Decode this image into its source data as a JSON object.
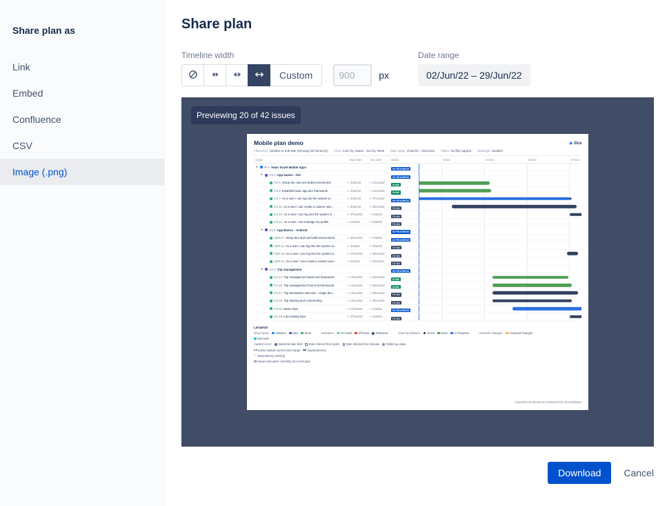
{
  "colors": {
    "accent": "#0052cc",
    "preview_bg": "#414d66",
    "badge_bg": "#2e3b5b",
    "status": {
      "IN PROGRESS": "#0052cc",
      "TO DO": "#344563",
      "DONE": "#00875a"
    },
    "bar": {
      "done": "#4f9e57",
      "inprogress": "#2a6fe0",
      "todo": "#32415f"
    },
    "issue_icon": {
      "initiative": "#2684ff",
      "epic": "#6554c0",
      "story": "#36b37e"
    }
  },
  "sidebar": {
    "title": "Share plan as",
    "items": [
      {
        "label": "Link",
        "selected": false
      },
      {
        "label": "Embed",
        "selected": false
      },
      {
        "label": "Confluence",
        "selected": false
      },
      {
        "label": "CSV",
        "selected": false
      },
      {
        "label": "Image (.png)",
        "selected": true
      }
    ]
  },
  "header": {
    "title": "Share plan"
  },
  "controls": {
    "timeline_width": {
      "label": "Timeline width",
      "icon_buttons": [
        {
          "name": "fit-none",
          "selected": false
        },
        {
          "name": "fit-small",
          "selected": false
        },
        {
          "name": "fit-medium",
          "selected": false
        },
        {
          "name": "fit-large",
          "selected": true
        }
      ],
      "custom_label": "Custom",
      "width_placeholder": "900",
      "unit_label": "px"
    },
    "date_range": {
      "label": "Date range",
      "value": "02/Jun/22 – 29/Jun/22"
    }
  },
  "preview": {
    "badge": "Previewing 20 of 42 issues"
  },
  "plan": {
    "title": "Mobile plan demo",
    "brand": "Jira",
    "meta": [
      {
        "label": "Filtered by:",
        "value": "Initiative to Sub-task (Showing full hierarchy)"
      },
      {
        "label": "View:",
        "value": "Color by: Status · Sort by: Rank"
      },
      {
        "label": "Date range:",
        "value": "2/Jun/22 – 29/Jun/22"
      },
      {
        "label": "Filters:",
        "value": "No filter applied"
      },
      {
        "label": "Warnings:",
        "value": "Enabled"
      }
    ],
    "table_headers": {
      "scope": "scope",
      "start": "start date",
      "due": "due date",
      "status": "status"
    },
    "timeline": {
      "gridlines": [
        {
          "label": "6/Jun",
          "pct": 14.8
        },
        {
          "label": "13/Jun",
          "pct": 40.7
        },
        {
          "label": "20/Jun",
          "pct": 66.7
        },
        {
          "label": "27/Jun",
          "pct": 92.6
        }
      ],
      "today_pct": 0.8
    },
    "rows": [
      {
        "key": "IP-4",
        "summary": "Team Travel Mobile Apps",
        "level": 0,
        "type": "initiative",
        "expander": true,
        "start": "",
        "due": "",
        "status": "IN PROGRESS",
        "bar": null
      },
      {
        "key": "CS-4",
        "summary": "App basics - iOS",
        "level": 1,
        "type": "epic",
        "expander": true,
        "start": "",
        "due": "",
        "status": "IN PROGRESS",
        "bar": null
      },
      {
        "key": "CS-6",
        "summary": "Setup dev and unit build environment",
        "level": 2,
        "type": "story",
        "expander": false,
        "start": "2/Jun/22",
        "due": "14/Jun/22",
        "status": "DONE",
        "bar": {
          "from": 0.8,
          "to": 44,
          "color": "done"
        }
      },
      {
        "key": "CS-8",
        "summary": "Establish basic app dev framework",
        "level": 2,
        "type": "story",
        "expander": false,
        "start": "2/Jun/22",
        "due": "14/Jun/22",
        "status": "DONE",
        "bar": {
          "from": 0.8,
          "to": 45,
          "color": "done"
        }
      },
      {
        "key": "CS-7",
        "summary": "As a user I can log into the system w...",
        "level": 2,
        "type": "story",
        "expander": false,
        "start": "2/Jun/22",
        "due": "27/Jun/22",
        "status": "IN PROGRESS",
        "bar": {
          "from": 0.8,
          "to": 93,
          "color": "inprogress",
          "marker": true
        }
      },
      {
        "key": "CS-11",
        "summary": "As a user I can create a custom user...",
        "level": 2,
        "type": "story",
        "expander": false,
        "start": "8/Jun/22",
        "due": "28/Jun/22",
        "status": "TO DO",
        "bar": {
          "from": 21,
          "to": 97,
          "color": "todo"
        }
      },
      {
        "key": "CS-10",
        "summary": "As a user I can log into the system vi...",
        "level": 2,
        "type": "story",
        "expander": false,
        "start": "27/Jun/22",
        "due": "1/Jul/22",
        "status": "TO DO",
        "bar": {
          "from": 93,
          "to": 100,
          "color": "todo",
          "clip": true
        }
      },
      {
        "key": "CS-12",
        "summary": "As a user I can manage my profile",
        "level": 2,
        "type": "story",
        "expander": false,
        "start": "1/Jul/22",
        "due": "8/Jul/22",
        "status": "TO DO",
        "bar": null
      },
      {
        "key": "CS-5",
        "summary": "App Basics - Android",
        "level": 1,
        "type": "epic",
        "expander": true,
        "start": "",
        "due": "",
        "status": "IN PROGRESS",
        "bar": null
      },
      {
        "key": "ADR-17",
        "summary": "Setup dev and unit build environment",
        "level": 2,
        "type": "story",
        "expander": false,
        "start": "30/Jun/22",
        "due": "7/Jul/22",
        "status": "IN PROGRESS",
        "bar": null
      },
      {
        "key": "ADR-11",
        "summary": "As a user I can log into the system w...",
        "level": 2,
        "type": "story",
        "expander": false,
        "start": "4/Jul/22",
        "due": "8/Jul/22",
        "status": "TO DO",
        "bar": null
      },
      {
        "key": "ADR-15",
        "summary": "As a user I can log into the system vi...",
        "level": 2,
        "type": "story",
        "expander": false,
        "start": "27/Jun/22",
        "due": "29/Jun/22",
        "status": "TO DO",
        "bar": {
          "from": 91,
          "to": 98,
          "color": "todo"
        }
      },
      {
        "key": "ADR-14",
        "summary": "As a user I can create a custom user...",
        "level": 2,
        "type": "story",
        "expander": false,
        "start": "6/Jul/22",
        "due": "12/Jul/22",
        "status": "TO DO",
        "bar": null
      },
      {
        "key": "CS-2",
        "summary": "Trip management",
        "level": 1,
        "type": "epic",
        "expander": true,
        "start": "",
        "due": "",
        "status": "IN PROGRESS",
        "bar": null
      },
      {
        "key": "CS-14",
        "summary": "Trip management back-end framework",
        "level": 2,
        "type": "story",
        "expander": false,
        "start": "14/Jun/22",
        "due": "24/Jun/22",
        "status": "DONE",
        "bar": {
          "from": 46,
          "to": 92,
          "color": "done"
        }
      },
      {
        "key": "CS-15",
        "summary": "Trip management front-end framework",
        "level": 2,
        "type": "story",
        "expander": false,
        "start": "14/Jun/22",
        "due": "25/Jun/22",
        "status": "DONE",
        "bar": {
          "from": 46,
          "to": 94,
          "color": "done"
        }
      },
      {
        "key": "CS-17",
        "summary": "Trip destination selection - single des...",
        "level": 2,
        "type": "story",
        "expander": false,
        "start": "14/Jun/22",
        "due": "28/Jun/22",
        "status": "TO DO",
        "bar": {
          "from": 46,
          "to": 98,
          "color": "todo"
        }
      },
      {
        "key": "CS-20",
        "summary": "Trip sharing and commenting",
        "level": 2,
        "type": "story",
        "expander": false,
        "start": "14/Jun/22",
        "due": "25/Jun/22",
        "status": "TO DO",
        "bar": {
          "from": 46,
          "to": 94,
          "color": "todo"
        }
      },
      {
        "key": "CS-22",
        "summary": "Name trips",
        "level": 2,
        "type": "story",
        "expander": false,
        "start": "17/Jun/22",
        "due": "1/Jul/22",
        "status": "IN PROGRESS",
        "bar": {
          "from": 58,
          "to": 100,
          "color": "inprogress",
          "clip": true
        }
      },
      {
        "key": "CS-18",
        "summary": "List existing trips",
        "level": 2,
        "type": "story",
        "expander": false,
        "start": "27/Jun/22",
        "due": "4/Jul/22",
        "status": "TO DO",
        "bar": {
          "from": 93,
          "to": 100,
          "color": "todo",
          "clip": true
        }
      }
    ],
    "legend": {
      "title": "LEGEND",
      "rows": [
        [
          {
            "label": "Issue types:",
            "items": [
              {
                "shape": "square",
                "color": "#2684ff",
                "text": "Initiative"
              },
              {
                "shape": "square",
                "color": "#6554c0",
                "text": "Epic"
              },
              {
                "shape": "square",
                "color": "#36b37e",
                "text": "Story"
              }
            ]
          },
          {
            "label": "Releases:",
            "items": [
              {
                "shape": "dot",
                "color": "#36b37e",
                "text": "On-track"
              },
              {
                "shape": "dot",
                "color": "#de350b",
                "text": "Off-track"
              },
              {
                "shape": "diamond",
                "color": "#344563",
                "text": "Released"
              }
            ]
          },
          {
            "label": "Color by (Status):",
            "items": [
              {
                "shape": "square",
                "color": "#344563",
                "text": "To Do"
              },
              {
                "shape": "square",
                "color": "#4f9e57",
                "text": "Done"
              },
              {
                "shape": "square",
                "color": "#2a6fe0",
                "text": "In Progress"
              }
            ]
          },
          {
            "label": "Scenario changes:",
            "items": [
              {
                "shape": "outline",
                "color": "#ff991f",
                "text": "Unsaved changes"
              }
            ]
          }
        ],
        [
          {
            "label": "",
            "items": [
              {
                "shape": "square",
                "color": "#00b8d9",
                "text": "Sub-task"
              }
            ]
          }
        ],
        [
          {
            "label": "Applied icons:",
            "items": [
              {
                "shape": "dot",
                "color": "#5e6c84",
                "text": "Start/end date limit"
              },
              {
                "shape": "outline",
                "color": "#5e6c84",
                "text": "Date inferred from sprint"
              },
              {
                "shape": "outline",
                "color": "#5e6c84",
                "text": "Date inferred from release"
              },
              {
                "shape": "dot",
                "color": "#8993a4",
                "text": "Rolled-up value"
              }
            ]
          }
        ],
        [
          {
            "label": "",
            "items": [
              {
                "shape": "halfdots",
                "color": "#5e6c84",
                "text": "Dates outside current view range"
              },
              {
                "shape": "line",
                "color": "#5e6c84",
                "text": "Dependencies"
              }
            ]
          }
        ],
        [
          {
            "label": "",
            "items": [
              {
                "shape": "warn",
                "color": "#ff991f",
                "text": "Dependency warning"
              }
            ]
          }
        ],
        [
          {
            "label": "",
            "items": [
              {
                "shape": "hatch",
                "color": "#8993a4",
                "text": "Issues and epics currently not in this plan"
              }
            ]
          }
        ]
      ]
    },
    "footer": "Exported on 02/Jun/22 | Powered by Jira Software"
  },
  "actions": {
    "download": "Download",
    "cancel": "Cancel"
  }
}
